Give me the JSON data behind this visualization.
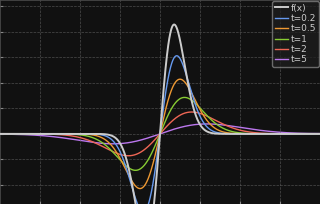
{
  "background_color": "#111111",
  "plot_bg_color": "#111111",
  "grid_color": "#666666",
  "grid_style": "--",
  "xlim": [
    -8,
    8
  ],
  "ylim": [
    -0.55,
    1.05
  ],
  "legend_entries": [
    "f(x)",
    "t=0.2",
    "t=0.5",
    "t=1",
    "t=2",
    "t=5"
  ],
  "line_colors": [
    "#222222",
    "#6699ee",
    "#ee9933",
    "#88cc33",
    "#ee6655",
    "#bb77ee"
  ],
  "legend_fontsize": 6.5,
  "t_values": [
    0,
    0.2,
    0.5,
    1,
    2,
    5
  ],
  "tick_color": "#888888",
  "axis_color": "#555555",
  "f_line_color": "#cccccc"
}
